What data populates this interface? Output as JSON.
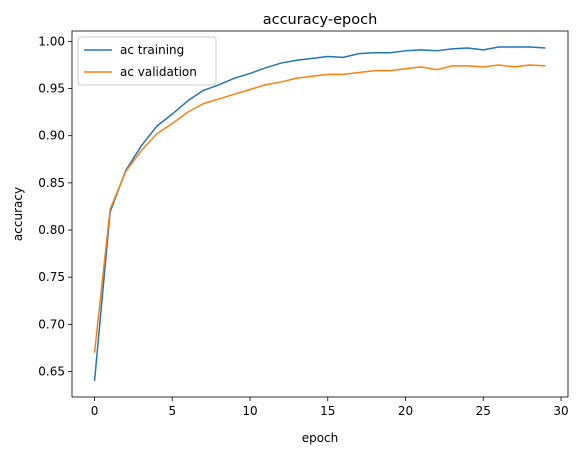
{
  "chart_data": {
    "type": "line",
    "title": "accuracy-epoch",
    "xlabel": "epoch",
    "ylabel": "accuracy",
    "xlim": [
      -1.45,
      30.45
    ],
    "ylim": [
      0.623,
      1.011
    ],
    "xticks": [
      0,
      5,
      10,
      15,
      20,
      25,
      30
    ],
    "yticks": [
      0.65,
      0.7,
      0.75,
      0.8,
      0.85,
      0.9,
      0.95,
      1.0
    ],
    "xtick_labels": [
      "0",
      "5",
      "10",
      "15",
      "20",
      "25",
      "30"
    ],
    "ytick_labels": [
      "0.65",
      "0.70",
      "0.75",
      "0.80",
      "0.85",
      "0.90",
      "0.95",
      "1.00"
    ],
    "grid": false,
    "legend_position": "top-left",
    "x": [
      0,
      1,
      2,
      3,
      4,
      5,
      6,
      7,
      8,
      9,
      10,
      11,
      12,
      13,
      14,
      15,
      16,
      17,
      18,
      19,
      20,
      21,
      22,
      23,
      24,
      25,
      26,
      27,
      28,
      29
    ],
    "series": [
      {
        "name": "ac training",
        "color": "#1f77b4",
        "values": [
          0.64,
          0.819,
          0.863,
          0.889,
          0.91,
          0.923,
          0.937,
          0.948,
          0.954,
          0.961,
          0.966,
          0.972,
          0.977,
          0.98,
          0.982,
          0.984,
          0.983,
          0.987,
          0.988,
          0.988,
          0.99,
          0.991,
          0.99,
          0.992,
          0.993,
          0.991,
          0.994,
          0.994,
          0.994,
          0.993
        ]
      },
      {
        "name": "ac validation",
        "color": "#ff7f0e",
        "values": [
          0.67,
          0.822,
          0.862,
          0.884,
          0.902,
          0.913,
          0.925,
          0.934,
          0.939,
          0.944,
          0.949,
          0.954,
          0.957,
          0.961,
          0.963,
          0.965,
          0.965,
          0.967,
          0.969,
          0.969,
          0.971,
          0.973,
          0.97,
          0.974,
          0.974,
          0.973,
          0.975,
          0.973,
          0.975,
          0.974
        ]
      }
    ]
  }
}
